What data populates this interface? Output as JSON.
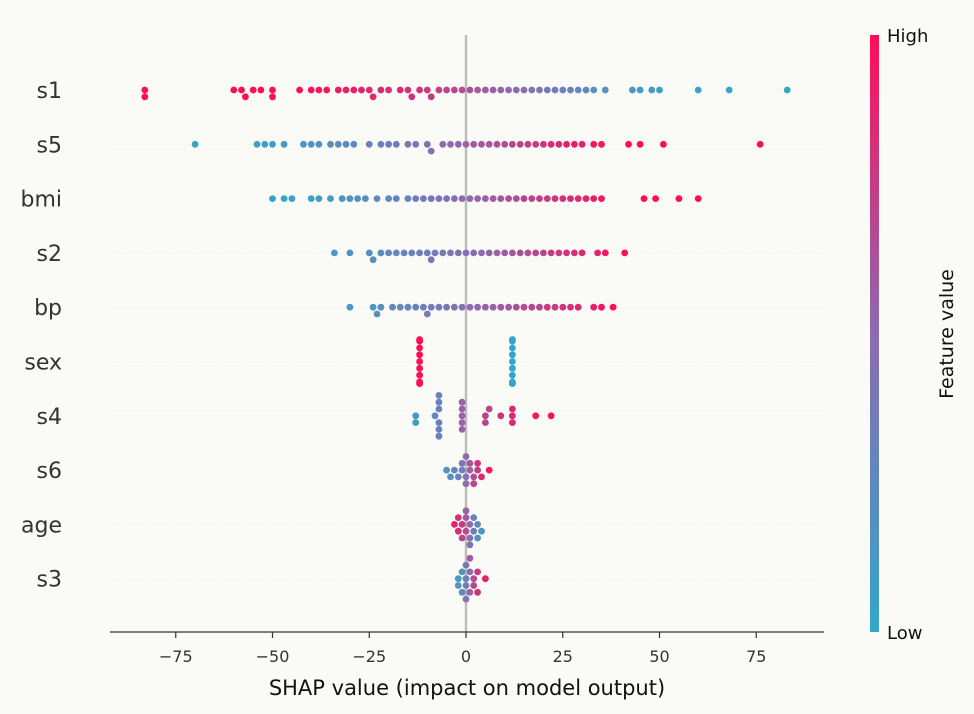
{
  "chart_data": {
    "type": "scatter",
    "subtype": "shap-beeswarm",
    "title": "",
    "xlabel": "SHAP value (impact on model output)",
    "ylabel": "",
    "xlim": [
      -92,
      93
    ],
    "x_ticks": [
      -75,
      -50,
      -25,
      0,
      25,
      50,
      75
    ],
    "x_tick_labels": [
      "−75",
      "−50",
      "−25",
      "0",
      "25",
      "50",
      "75"
    ],
    "grid": false,
    "features": [
      "s1",
      "s5",
      "bmi",
      "s2",
      "bp",
      "sex",
      "s4",
      "s6",
      "age",
      "s3"
    ],
    "colorbar": {
      "title": "Feature value",
      "high_label": "High",
      "low_label": "Low",
      "high_color": "#ff0d57",
      "mid_color": "#8c6bb1",
      "low_color": "#1e88e5",
      "low_color_display": "#33a7c9"
    },
    "series": [
      {
        "feature": "s1",
        "points": [
          [
            -83,
            1
          ],
          [
            -83,
            1
          ],
          [
            -60,
            1
          ],
          [
            -58,
            1
          ],
          [
            -57,
            1
          ],
          [
            -55,
            1
          ],
          [
            -53,
            1
          ],
          [
            -50,
            1
          ],
          [
            -50,
            1
          ],
          [
            -43,
            1
          ],
          [
            -40,
            1
          ],
          [
            -38,
            0.95
          ],
          [
            -36,
            0.95
          ],
          [
            -33,
            0.95
          ],
          [
            -31,
            0.9
          ],
          [
            -29,
            0.9
          ],
          [
            -27,
            0.9
          ],
          [
            -25,
            0.85
          ],
          [
            -24,
            0.85
          ],
          [
            -22,
            0.85
          ],
          [
            -20,
            0.8
          ],
          [
            -17,
            0.85
          ],
          [
            -15,
            0.8
          ],
          [
            -14,
            0.8
          ],
          [
            -12,
            0.8
          ],
          [
            -10,
            0.75
          ],
          [
            -9,
            0.75
          ],
          [
            -7,
            0.75
          ],
          [
            -5,
            0.7
          ],
          [
            -3,
            0.7
          ],
          [
            -1,
            0.65
          ],
          [
            1,
            0.65
          ],
          [
            3,
            0.6
          ],
          [
            5,
            0.6
          ],
          [
            7,
            0.55
          ],
          [
            9,
            0.55
          ],
          [
            11,
            0.5
          ],
          [
            13,
            0.5
          ],
          [
            15,
            0.45
          ],
          [
            17,
            0.45
          ],
          [
            19,
            0.4
          ],
          [
            21,
            0.4
          ],
          [
            23,
            0.35
          ],
          [
            25,
            0.3
          ],
          [
            27,
            0.3
          ],
          [
            29,
            0.25
          ],
          [
            31,
            0.25
          ],
          [
            33,
            0.2
          ],
          [
            36,
            0.2
          ],
          [
            43,
            0.15
          ],
          [
            45,
            0.1
          ],
          [
            48,
            0.1
          ],
          [
            50,
            0.05
          ],
          [
            60,
            0.05
          ],
          [
            68,
            0
          ],
          [
            83,
            0
          ]
        ]
      },
      {
        "feature": "s5",
        "points": [
          [
            -70,
            0
          ],
          [
            -54,
            0.05
          ],
          [
            -52,
            0.05
          ],
          [
            -50,
            0.1
          ],
          [
            -47,
            0.1
          ],
          [
            -42,
            0.15
          ],
          [
            -40,
            0.15
          ],
          [
            -38,
            0.2
          ],
          [
            -35,
            0.2
          ],
          [
            -33,
            0.2
          ],
          [
            -31,
            0.25
          ],
          [
            -29,
            0.25
          ],
          [
            -25,
            0.3
          ],
          [
            -22,
            0.3
          ],
          [
            -20,
            0.35
          ],
          [
            -18,
            0.35
          ],
          [
            -15,
            0.4
          ],
          [
            -13,
            0.4
          ],
          [
            -10,
            0.45
          ],
          [
            -9,
            0.45
          ],
          [
            -6,
            0.5
          ],
          [
            -4,
            0.5
          ],
          [
            -2,
            0.55
          ],
          [
            0,
            0.55
          ],
          [
            2,
            0.6
          ],
          [
            4,
            0.6
          ],
          [
            6,
            0.6
          ],
          [
            8,
            0.65
          ],
          [
            10,
            0.65
          ],
          [
            12,
            0.7
          ],
          [
            14,
            0.7
          ],
          [
            16,
            0.75
          ],
          [
            18,
            0.75
          ],
          [
            20,
            0.8
          ],
          [
            22,
            0.85
          ],
          [
            24,
            0.85
          ],
          [
            26,
            0.9
          ],
          [
            28,
            0.9
          ],
          [
            30,
            0.9
          ],
          [
            33,
            0.95
          ],
          [
            35,
            0.95
          ],
          [
            42,
            1
          ],
          [
            45,
            1
          ],
          [
            51,
            1
          ],
          [
            76,
            1
          ]
        ]
      },
      {
        "feature": "bmi",
        "points": [
          [
            -50,
            0
          ],
          [
            -47,
            0
          ],
          [
            -45,
            0.05
          ],
          [
            -40,
            0.05
          ],
          [
            -38,
            0.1
          ],
          [
            -35,
            0.1
          ],
          [
            -32,
            0.15
          ],
          [
            -30,
            0.15
          ],
          [
            -28,
            0.2
          ],
          [
            -26,
            0.2
          ],
          [
            -23,
            0.25
          ],
          [
            -20,
            0.25
          ],
          [
            -18,
            0.3
          ],
          [
            -15,
            0.3
          ],
          [
            -13,
            0.35
          ],
          [
            -11,
            0.35
          ],
          [
            -9,
            0.4
          ],
          [
            -7,
            0.4
          ],
          [
            -5,
            0.45
          ],
          [
            -3,
            0.45
          ],
          [
            -1,
            0.5
          ],
          [
            1,
            0.5
          ],
          [
            3,
            0.55
          ],
          [
            5,
            0.55
          ],
          [
            7,
            0.6
          ],
          [
            9,
            0.6
          ],
          [
            11,
            0.65
          ],
          [
            13,
            0.65
          ],
          [
            15,
            0.7
          ],
          [
            17,
            0.7
          ],
          [
            19,
            0.75
          ],
          [
            21,
            0.75
          ],
          [
            23,
            0.8
          ],
          [
            25,
            0.8
          ],
          [
            27,
            0.85
          ],
          [
            29,
            0.85
          ],
          [
            31,
            0.9
          ],
          [
            33,
            0.9
          ],
          [
            35,
            0.95
          ],
          [
            46,
            1
          ],
          [
            49,
            1
          ],
          [
            55,
            1
          ],
          [
            60,
            1
          ]
        ]
      },
      {
        "feature": "s2",
        "points": [
          [
            -34,
            0.1
          ],
          [
            -30,
            0.15
          ],
          [
            -25,
            0.2
          ],
          [
            -24,
            0.2
          ],
          [
            -22,
            0.2
          ],
          [
            -20,
            0.25
          ],
          [
            -18,
            0.25
          ],
          [
            -16,
            0.3
          ],
          [
            -14,
            0.3
          ],
          [
            -12,
            0.3
          ],
          [
            -10,
            0.35
          ],
          [
            -9,
            0.35
          ],
          [
            -8,
            0.35
          ],
          [
            -6,
            0.4
          ],
          [
            -4,
            0.4
          ],
          [
            -2,
            0.45
          ],
          [
            0,
            0.45
          ],
          [
            2,
            0.5
          ],
          [
            4,
            0.5
          ],
          [
            6,
            0.55
          ],
          [
            8,
            0.55
          ],
          [
            10,
            0.6
          ],
          [
            12,
            0.6
          ],
          [
            14,
            0.65
          ],
          [
            16,
            0.65
          ],
          [
            18,
            0.7
          ],
          [
            20,
            0.7
          ],
          [
            22,
            0.75
          ],
          [
            24,
            0.75
          ],
          [
            26,
            0.8
          ],
          [
            28,
            0.8
          ],
          [
            30,
            0.85
          ],
          [
            34,
            0.9
          ],
          [
            36,
            0.95
          ],
          [
            41,
            1
          ]
        ]
      },
      {
        "feature": "bp",
        "points": [
          [
            -30,
            0.1
          ],
          [
            -24,
            0.15
          ],
          [
            -23,
            0.2
          ],
          [
            -22,
            0.2
          ],
          [
            -19,
            0.25
          ],
          [
            -17,
            0.25
          ],
          [
            -15,
            0.3
          ],
          [
            -13,
            0.3
          ],
          [
            -11,
            0.35
          ],
          [
            -10,
            0.35
          ],
          [
            -9,
            0.35
          ],
          [
            -7,
            0.4
          ],
          [
            -5,
            0.4
          ],
          [
            -3,
            0.45
          ],
          [
            -1,
            0.45
          ],
          [
            1,
            0.5
          ],
          [
            3,
            0.5
          ],
          [
            5,
            0.55
          ],
          [
            7,
            0.55
          ],
          [
            9,
            0.6
          ],
          [
            11,
            0.6
          ],
          [
            13,
            0.65
          ],
          [
            15,
            0.65
          ],
          [
            17,
            0.7
          ],
          [
            19,
            0.7
          ],
          [
            21,
            0.75
          ],
          [
            23,
            0.75
          ],
          [
            25,
            0.8
          ],
          [
            27,
            0.8
          ],
          [
            29,
            0.85
          ],
          [
            33,
            0.9
          ],
          [
            35,
            0.95
          ],
          [
            38,
            1
          ]
        ]
      },
      {
        "feature": "sex",
        "points": [
          [
            -12,
            1
          ],
          [
            -12,
            1
          ],
          [
            -12,
            1
          ],
          [
            -12,
            1
          ],
          [
            -12,
            1
          ],
          [
            -12,
            1
          ],
          [
            -12,
            1
          ],
          [
            -12,
            1
          ],
          [
            -12,
            1
          ],
          [
            -12,
            1
          ],
          [
            12,
            0
          ],
          [
            12,
            0
          ],
          [
            12,
            0
          ],
          [
            12,
            0
          ],
          [
            12,
            0
          ],
          [
            12,
            0
          ],
          [
            12,
            0
          ],
          [
            12,
            0
          ],
          [
            12,
            0
          ],
          [
            12,
            0
          ],
          [
            12,
            0
          ],
          [
            12,
            0
          ]
        ]
      },
      {
        "feature": "s4",
        "points": [
          [
            -13,
            0.1
          ],
          [
            -13,
            0.1
          ],
          [
            -8,
            0.25
          ],
          [
            -7,
            0.3
          ],
          [
            -7,
            0.3
          ],
          [
            -7,
            0.3
          ],
          [
            -7,
            0.3
          ],
          [
            -7,
            0.3
          ],
          [
            -7,
            0.3
          ],
          [
            -1,
            0.55
          ],
          [
            -1,
            0.55
          ],
          [
            -1,
            0.55
          ],
          [
            -1,
            0.55
          ],
          [
            -1,
            0.55
          ],
          [
            5,
            0.7
          ],
          [
            5,
            0.7
          ],
          [
            6,
            0.7
          ],
          [
            9,
            0.8
          ],
          [
            12,
            0.85
          ],
          [
            12,
            0.85
          ],
          [
            12,
            0.85
          ],
          [
            18,
            0.95
          ],
          [
            22,
            1
          ]
        ]
      },
      {
        "feature": "s6",
        "points": [
          [
            -5,
            0.15
          ],
          [
            -4,
            0.2
          ],
          [
            -3,
            0.25
          ],
          [
            -2,
            0.3
          ],
          [
            -1,
            0.35
          ],
          [
            -1,
            0.4
          ],
          [
            0,
            0.45
          ],
          [
            0,
            0.5
          ],
          [
            0,
            0.5
          ],
          [
            1,
            0.55
          ],
          [
            1,
            0.6
          ],
          [
            2,
            0.65
          ],
          [
            2,
            0.7
          ],
          [
            3,
            0.75
          ],
          [
            3,
            0.8
          ],
          [
            4,
            0.85
          ],
          [
            6,
            0.95
          ]
        ]
      },
      {
        "feature": "age",
        "points": [
          [
            -3,
            0.9
          ],
          [
            -2,
            0.85
          ],
          [
            -2,
            0.8
          ],
          [
            -1,
            0.75
          ],
          [
            -1,
            0.7
          ],
          [
            0,
            0.65
          ],
          [
            0,
            0.6
          ],
          [
            0,
            0.55
          ],
          [
            1,
            0.5
          ],
          [
            1,
            0.45
          ],
          [
            1,
            0.4
          ],
          [
            2,
            0.35
          ],
          [
            2,
            0.3
          ],
          [
            3,
            0.25
          ],
          [
            3,
            0.2
          ],
          [
            4,
            0.1
          ]
        ]
      },
      {
        "feature": "s3",
        "points": [
          [
            -2,
            0.1
          ],
          [
            -2,
            0.15
          ],
          [
            -1,
            0.2
          ],
          [
            -1,
            0.25
          ],
          [
            0,
            0.3
          ],
          [
            0,
            0.35
          ],
          [
            0,
            0.4
          ],
          [
            0,
            0.45
          ],
          [
            1,
            0.5
          ],
          [
            1,
            0.55
          ],
          [
            1,
            0.6
          ],
          [
            2,
            0.65
          ],
          [
            2,
            0.7
          ],
          [
            3,
            0.75
          ],
          [
            3,
            0.8
          ],
          [
            5,
            0.9
          ]
        ]
      }
    ]
  }
}
